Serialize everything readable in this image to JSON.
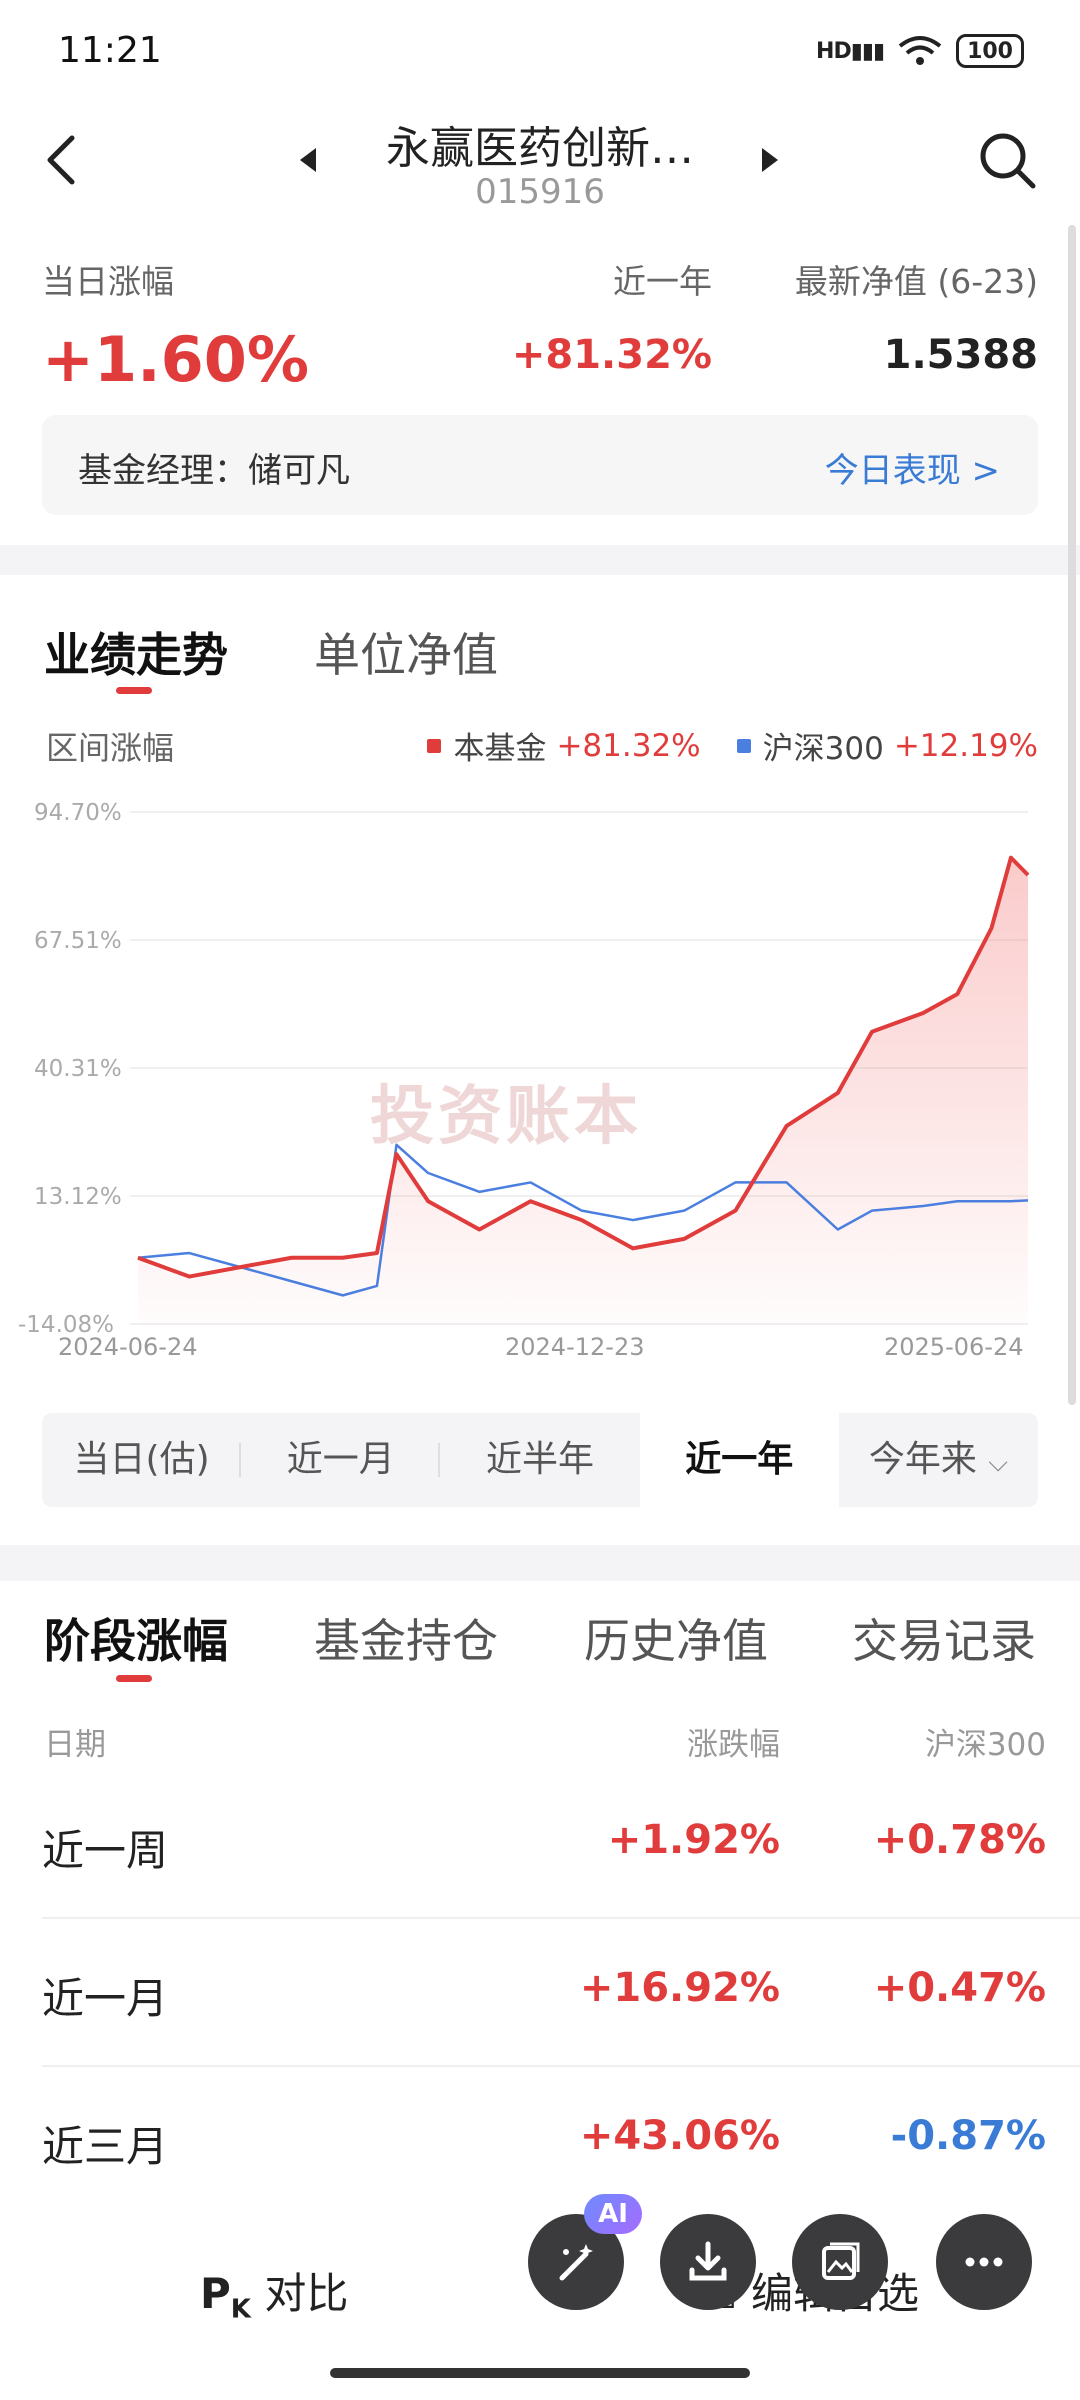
{
  "status_bar": {
    "time": "11:21",
    "network": "HD",
    "battery": "100"
  },
  "header": {
    "title": "永赢医药创新…",
    "code": "015916"
  },
  "summary": {
    "daily_change_label": "当日涨幅",
    "daily_change_value": "+1.60%",
    "year_label": "近一年",
    "year_value": "+81.32%",
    "nav_label": "最新净值 (6-23)",
    "nav_value": "1.5388",
    "manager_text": "基金经理：储可凡",
    "today_link": "今日表现 >"
  },
  "performance": {
    "tabs": [
      "业绩走势",
      "单位净值"
    ],
    "range_label": "区间涨幅",
    "legend": [
      {
        "name": "本基金",
        "value": "+81.32%",
        "color": "#e03c3c"
      },
      {
        "name": "沪深300",
        "value": "+12.19%",
        "color": "#4a7fe0"
      }
    ],
    "watermark": "投资账本",
    "periods": [
      "当日(估)",
      "近一月",
      "近半年",
      "近一年",
      "今年来"
    ],
    "active_period": "近一年"
  },
  "chart_data": {
    "type": "line",
    "title": "",
    "xlabel": "",
    "ylabel": "",
    "ylim": [
      -14.08,
      94.7
    ],
    "y_ticks": [
      "94.70%",
      "67.51%",
      "40.31%",
      "13.12%",
      "-14.08%"
    ],
    "x_ticks": [
      "2024-06-24",
      "2024-12-23",
      "2025-06-24"
    ],
    "x": [
      "2024-06-24",
      "2024-07-15",
      "2024-08-05",
      "2024-08-26",
      "2024-09-16",
      "2024-09-30",
      "2024-10-08",
      "2024-10-21",
      "2024-11-11",
      "2024-12-02",
      "2024-12-23",
      "2025-01-13",
      "2025-02-03",
      "2025-02-24",
      "2025-03-17",
      "2025-04-07",
      "2025-04-21",
      "2025-05-12",
      "2025-05-26",
      "2025-06-09",
      "2025-06-17",
      "2025-06-24"
    ],
    "series": [
      {
        "name": "本基金",
        "color": "#e03c3c",
        "values": [
          0,
          -4,
          -2,
          0,
          0,
          1,
          22,
          12,
          6,
          12,
          8,
          2,
          4,
          10,
          28,
          35,
          48,
          52,
          56,
          70,
          85,
          81.32
        ]
      },
      {
        "name": "沪深300",
        "color": "#4a7fe0",
        "values": [
          0,
          1,
          -2,
          -5,
          -8,
          -6,
          24,
          18,
          14,
          16,
          10,
          8,
          10,
          16,
          16,
          6,
          10,
          11,
          12,
          12,
          12,
          12.19
        ]
      }
    ]
  },
  "stage": {
    "tabs": [
      "阶段涨幅",
      "基金持仓",
      "历史净值",
      "交易记录"
    ],
    "columns": [
      "日期",
      "涨跌幅",
      "沪深300"
    ],
    "rows": [
      {
        "period": "近一周",
        "change": "+1.92%",
        "hs300": "+0.78%"
      },
      {
        "period": "近一月",
        "change": "+16.92%",
        "hs300": "+0.47%"
      },
      {
        "period": "近三月",
        "change": "+43.06%",
        "hs300": "-0.87%"
      }
    ]
  },
  "bottom_bar": {
    "compare": "对比",
    "edit": "编辑自选",
    "ai_badge": "AI"
  }
}
